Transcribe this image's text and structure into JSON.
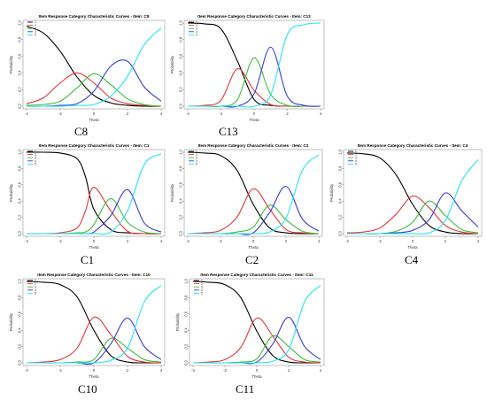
{
  "chart_data": [
    {
      "type": "line",
      "title": "Item Response Category Characteristic Curves - Item: C8",
      "caption": "C8",
      "xlabel": "Theta",
      "ylabel": "Probability",
      "xlim": [
        -4,
        4
      ],
      "ylim": [
        0,
        1
      ],
      "xticks": [
        "-4",
        "-2",
        "0",
        "2",
        "4"
      ],
      "yticks": [
        "0.0",
        "0.2",
        "0.4",
        "0.6",
        "0.8",
        "1.0"
      ],
      "legend": "top-left",
      "series": [
        {
          "name": "1",
          "color": "#000000",
          "x": [
            -4,
            -3,
            -2,
            -1,
            0,
            1,
            2,
            3,
            4
          ],
          "y": [
            0.96,
            0.88,
            0.66,
            0.35,
            0.13,
            0.04,
            0.01,
            0.0,
            0.0
          ]
        },
        {
          "name": "2",
          "color": "#e8353a",
          "x": [
            -4,
            -3,
            -2,
            -1,
            0,
            1,
            2,
            3,
            4
          ],
          "y": [
            0.03,
            0.1,
            0.28,
            0.4,
            0.28,
            0.1,
            0.03,
            0.01,
            0.0
          ]
        },
        {
          "name": "3",
          "color": "#3cbf3c",
          "x": [
            -4,
            -3,
            -2,
            -1,
            0,
            1,
            2,
            3,
            4
          ],
          "y": [
            0.01,
            0.02,
            0.06,
            0.22,
            0.39,
            0.26,
            0.09,
            0.02,
            0.0
          ]
        },
        {
          "name": "4",
          "color": "#3a3ad8",
          "x": [
            -4,
            -3,
            -2,
            -1,
            0,
            1,
            2,
            3,
            4
          ],
          "y": [
            0.0,
            0.0,
            0.01,
            0.03,
            0.18,
            0.48,
            0.54,
            0.23,
            0.06
          ]
        },
        {
          "name": "5",
          "color": "#22e6f0",
          "x": [
            -4,
            -3,
            -2,
            -1,
            0,
            1,
            2,
            3,
            4
          ],
          "y": [
            0.0,
            0.0,
            0.0,
            0.01,
            0.02,
            0.12,
            0.36,
            0.74,
            0.94
          ]
        }
      ]
    },
    {
      "type": "line",
      "title": "Item Response Category Characteristic Curves - Item: C13",
      "caption": "C13",
      "xlabel": "Theta",
      "ylabel": "Probability",
      "xlim": [
        -4,
        4
      ],
      "ylim": [
        0,
        1
      ],
      "xticks": [
        "-4",
        "-2",
        "0",
        "2",
        "4"
      ],
      "yticks": [
        "0.0",
        "0.2",
        "0.4",
        "0.6",
        "0.8",
        "1.0"
      ],
      "legend": "top-left",
      "series": [
        {
          "name": "1",
          "color": "#000000",
          "x": [
            -4,
            -3,
            -2,
            -1,
            0,
            1,
            2,
            3,
            4
          ],
          "y": [
            1.0,
            0.99,
            0.93,
            0.54,
            0.08,
            0.01,
            0.0,
            0.0,
            0.0
          ]
        },
        {
          "name": "2",
          "color": "#e8353a",
          "x": [
            -4,
            -3,
            -2,
            -1,
            0,
            1,
            2,
            3,
            4
          ],
          "y": [
            0.0,
            0.01,
            0.07,
            0.45,
            0.19,
            0.02,
            0.0,
            0.0,
            0.0
          ]
        },
        {
          "name": "3",
          "color": "#3cbf3c",
          "x": [
            -4,
            -3,
            -2,
            -1,
            0,
            1,
            2,
            3,
            4
          ],
          "y": [
            0.0,
            0.0,
            0.0,
            0.08,
            0.58,
            0.14,
            0.01,
            0.0,
            0.0
          ]
        },
        {
          "name": "4",
          "color": "#3a3ad8",
          "x": [
            -4,
            -3,
            -2,
            -1,
            0,
            1,
            2,
            3,
            4
          ],
          "y": [
            0.0,
            0.0,
            0.0,
            0.0,
            0.15,
            0.71,
            0.12,
            0.01,
            0.0
          ]
        },
        {
          "name": "5",
          "color": "#22e6f0",
          "x": [
            -4,
            -3,
            -2,
            -1,
            0,
            1,
            2,
            3,
            4
          ],
          "y": [
            0.0,
            0.0,
            0.0,
            0.0,
            0.0,
            0.14,
            0.86,
            0.98,
            1.0
          ]
        }
      ]
    },
    {
      "type": "line",
      "title": "Item Response Category Characteristic Curves - Item: C1",
      "caption": "C1",
      "xlabel": "Theta",
      "ylabel": "Probability",
      "xlim": [
        -4,
        4
      ],
      "ylim": [
        0,
        1
      ],
      "xticks": [
        "-4",
        "-2",
        "0",
        "2",
        "4"
      ],
      "yticks": [
        "0.0",
        "0.2",
        "0.4",
        "0.6",
        "0.8",
        "1.0"
      ],
      "legend": "top-left",
      "series": [
        {
          "name": "1",
          "color": "#000000",
          "x": [
            -4,
            -3,
            -2,
            -1,
            -0.5,
            0,
            1,
            2,
            3,
            4
          ],
          "y": [
            1.0,
            1.0,
            0.99,
            0.92,
            0.7,
            0.3,
            0.05,
            0.01,
            0.0,
            0.0
          ]
        },
        {
          "name": "2",
          "color": "#e8353a",
          "x": [
            -4,
            -3,
            -2,
            -1,
            -0.5,
            0,
            1,
            2,
            3,
            4
          ],
          "y": [
            0.0,
            0.0,
            0.01,
            0.07,
            0.28,
            0.57,
            0.28,
            0.03,
            0.0,
            0.0
          ]
        },
        {
          "name": "3",
          "color": "#3cbf3c",
          "x": [
            -4,
            -3,
            -2,
            -1,
            -0.5,
            0,
            1,
            2,
            3,
            4
          ],
          "y": [
            0.0,
            0.0,
            0.0,
            0.01,
            0.02,
            0.11,
            0.43,
            0.14,
            0.02,
            0.0
          ]
        },
        {
          "name": "4",
          "color": "#3a3ad8",
          "x": [
            -4,
            -3,
            -2,
            -1,
            -0.5,
            0,
            1,
            2,
            3,
            4
          ],
          "y": [
            0.0,
            0.0,
            0.0,
            0.0,
            0.0,
            0.02,
            0.22,
            0.54,
            0.13,
            0.02
          ]
        },
        {
          "name": "5",
          "color": "#22e6f0",
          "x": [
            -4,
            -3,
            -2,
            -1,
            -0.5,
            0,
            1,
            2,
            3,
            4
          ],
          "y": [
            0.0,
            0.0,
            0.0,
            0.0,
            0.0,
            0.0,
            0.02,
            0.28,
            0.85,
            0.98
          ]
        }
      ]
    },
    {
      "type": "line",
      "title": "Item Response Category Characteristic Curves - Item: C2",
      "caption": "C2",
      "xlabel": "Theta",
      "ylabel": "Probability",
      "xlim": [
        -4,
        4
      ],
      "ylim": [
        0,
        1
      ],
      "xticks": [
        "-4",
        "-2",
        "0",
        "2",
        "4"
      ],
      "yticks": [
        "0.0",
        "0.2",
        "0.4",
        "0.6",
        "0.8",
        "1.0"
      ],
      "legend": "top-left",
      "series": [
        {
          "name": "1",
          "color": "#000000",
          "x": [
            -4,
            -3,
            -2,
            -1,
            0,
            1,
            2,
            3,
            4
          ],
          "y": [
            1.0,
            0.99,
            0.96,
            0.78,
            0.36,
            0.07,
            0.01,
            0.0,
            0.0
          ]
        },
        {
          "name": "2",
          "color": "#e8353a",
          "x": [
            -4,
            -3,
            -2,
            -1,
            0,
            1,
            2,
            3,
            4
          ],
          "y": [
            0.0,
            0.01,
            0.04,
            0.2,
            0.55,
            0.3,
            0.05,
            0.01,
            0.0
          ]
        },
        {
          "name": "3",
          "color": "#3cbf3c",
          "x": [
            -4,
            -3,
            -2,
            -1,
            0,
            1,
            2,
            3,
            4
          ],
          "y": [
            0.0,
            0.0,
            0.0,
            0.02,
            0.08,
            0.35,
            0.17,
            0.03,
            0.0
          ]
        },
        {
          "name": "4",
          "color": "#3a3ad8",
          "x": [
            -4,
            -3,
            -2,
            -1,
            0,
            1,
            2,
            3,
            4
          ],
          "y": [
            0.0,
            0.0,
            0.0,
            0.0,
            0.01,
            0.26,
            0.58,
            0.18,
            0.03
          ]
        },
        {
          "name": "5",
          "color": "#22e6f0",
          "x": [
            -4,
            -3,
            -2,
            -1,
            0,
            1,
            2,
            3,
            4
          ],
          "y": [
            0.0,
            0.0,
            0.0,
            0.0,
            0.0,
            0.02,
            0.19,
            0.78,
            0.97
          ]
        }
      ]
    },
    {
      "type": "line",
      "title": "Item Response Category Characteristic Curves - Item: C4",
      "caption": "C4",
      "xlabel": "Theta",
      "ylabel": "Probability",
      "xlim": [
        -4,
        4
      ],
      "ylim": [
        0,
        1
      ],
      "xticks": [
        "-4",
        "-2",
        "0",
        "2",
        "4"
      ],
      "yticks": [
        "0.0",
        "0.2",
        "0.4",
        "0.6",
        "0.8",
        "1.0"
      ],
      "legend": "top-left",
      "series": [
        {
          "name": "1",
          "color": "#000000",
          "x": [
            -4,
            -3,
            -2,
            -1,
            0,
            1,
            2,
            3,
            4
          ],
          "y": [
            0.99,
            0.98,
            0.93,
            0.72,
            0.36,
            0.1,
            0.02,
            0.0,
            0.0
          ]
        },
        {
          "name": "2",
          "color": "#e8353a",
          "x": [
            -4,
            -3,
            -2,
            -1,
            0,
            1,
            2,
            3,
            4
          ],
          "y": [
            0.01,
            0.02,
            0.07,
            0.24,
            0.46,
            0.32,
            0.1,
            0.02,
            0.0
          ]
        },
        {
          "name": "3",
          "color": "#3cbf3c",
          "x": [
            -4,
            -3,
            -2,
            -1,
            0,
            1,
            2,
            3,
            4
          ],
          "y": [
            0.0,
            0.0,
            0.0,
            0.03,
            0.14,
            0.4,
            0.22,
            0.05,
            0.01
          ]
        },
        {
          "name": "4",
          "color": "#3a3ad8",
          "x": [
            -4,
            -3,
            -2,
            -1,
            0,
            1,
            2,
            3,
            4
          ],
          "y": [
            0.0,
            0.0,
            0.0,
            0.01,
            0.04,
            0.17,
            0.5,
            0.28,
            0.08
          ]
        },
        {
          "name": "5",
          "color": "#22e6f0",
          "x": [
            -4,
            -3,
            -2,
            -1,
            0,
            1,
            2,
            3,
            4
          ],
          "y": [
            0.0,
            0.0,
            0.0,
            0.0,
            0.0,
            0.01,
            0.16,
            0.65,
            0.91
          ]
        }
      ]
    },
    {
      "type": "line",
      "title": "Item Response Category Characteristic Curves - Item: C10",
      "caption": "C10",
      "xlabel": "Theta",
      "ylabel": "Probability",
      "xlim": [
        -4,
        4
      ],
      "ylim": [
        0,
        1
      ],
      "xticks": [
        "-4",
        "-2",
        "0",
        "2",
        "4"
      ],
      "yticks": [
        "0.0",
        "0.2",
        "0.4",
        "0.6",
        "0.8",
        "1.0"
      ],
      "legend": "top-left",
      "series": [
        {
          "name": "1",
          "color": "#000000",
          "x": [
            -4,
            -3,
            -2,
            -1,
            0,
            1,
            2,
            3,
            4
          ],
          "y": [
            1.0,
            0.99,
            0.96,
            0.81,
            0.4,
            0.09,
            0.01,
            0.0,
            0.0
          ]
        },
        {
          "name": "2",
          "color": "#e8353a",
          "x": [
            -4,
            -3,
            -2,
            -1,
            0,
            1,
            2,
            3,
            4
          ],
          "y": [
            0.0,
            0.01,
            0.04,
            0.18,
            0.56,
            0.35,
            0.08,
            0.01,
            0.0
          ]
        },
        {
          "name": "3",
          "color": "#3cbf3c",
          "x": [
            -4,
            -3,
            -2,
            -1,
            0,
            1,
            2,
            3,
            4
          ],
          "y": [
            0.0,
            0.0,
            0.0,
            0.01,
            0.04,
            0.3,
            0.18,
            0.04,
            0.01
          ]
        },
        {
          "name": "4",
          "color": "#3a3ad8",
          "x": [
            -4,
            -3,
            -2,
            -1,
            0,
            1,
            2,
            3,
            4
          ],
          "y": [
            0.0,
            0.0,
            0.0,
            0.0,
            0.0,
            0.23,
            0.55,
            0.2,
            0.04
          ]
        },
        {
          "name": "5",
          "color": "#22e6f0",
          "x": [
            -4,
            -3,
            -2,
            -1,
            0,
            1,
            2,
            3,
            4
          ],
          "y": [
            0.0,
            0.0,
            0.0,
            0.0,
            0.0,
            0.03,
            0.18,
            0.75,
            0.95
          ]
        }
      ]
    },
    {
      "type": "line",
      "title": "Item Response Category Characteristic Curves - Item: C11",
      "caption": "C11",
      "xlabel": "Theta",
      "ylabel": "Probability",
      "xlim": [
        -4,
        4
      ],
      "ylim": [
        0,
        1
      ],
      "xticks": [
        "-4",
        "-2",
        "0",
        "2",
        "4"
      ],
      "yticks": [
        "0.0",
        "0.2",
        "0.4",
        "0.6",
        "0.8",
        "1.0"
      ],
      "legend": "top-left",
      "series": [
        {
          "name": "1",
          "color": "#000000",
          "x": [
            -4,
            -3,
            -2,
            -1,
            0,
            1,
            2,
            3,
            4
          ],
          "y": [
            1.0,
            0.99,
            0.96,
            0.8,
            0.39,
            0.09,
            0.01,
            0.0,
            0.0
          ]
        },
        {
          "name": "2",
          "color": "#e8353a",
          "x": [
            -4,
            -3,
            -2,
            -1,
            0,
            1,
            2,
            3,
            4
          ],
          "y": [
            0.0,
            0.01,
            0.04,
            0.19,
            0.55,
            0.33,
            0.07,
            0.01,
            0.0
          ]
        },
        {
          "name": "3",
          "color": "#3cbf3c",
          "x": [
            -4,
            -3,
            -2,
            -1,
            0,
            1,
            2,
            3,
            4
          ],
          "y": [
            0.0,
            0.0,
            0.0,
            0.01,
            0.05,
            0.33,
            0.2,
            0.04,
            0.01
          ]
        },
        {
          "name": "4",
          "color": "#3a3ad8",
          "x": [
            -4,
            -3,
            -2,
            -1,
            0,
            1,
            2,
            3,
            4
          ],
          "y": [
            0.0,
            0.0,
            0.0,
            0.0,
            0.01,
            0.23,
            0.56,
            0.2,
            0.04
          ]
        },
        {
          "name": "5",
          "color": "#22e6f0",
          "x": [
            -4,
            -3,
            -2,
            -1,
            0,
            1,
            2,
            3,
            4
          ],
          "y": [
            0.0,
            0.0,
            0.0,
            0.0,
            0.0,
            0.02,
            0.16,
            0.75,
            0.95
          ]
        }
      ]
    }
  ]
}
